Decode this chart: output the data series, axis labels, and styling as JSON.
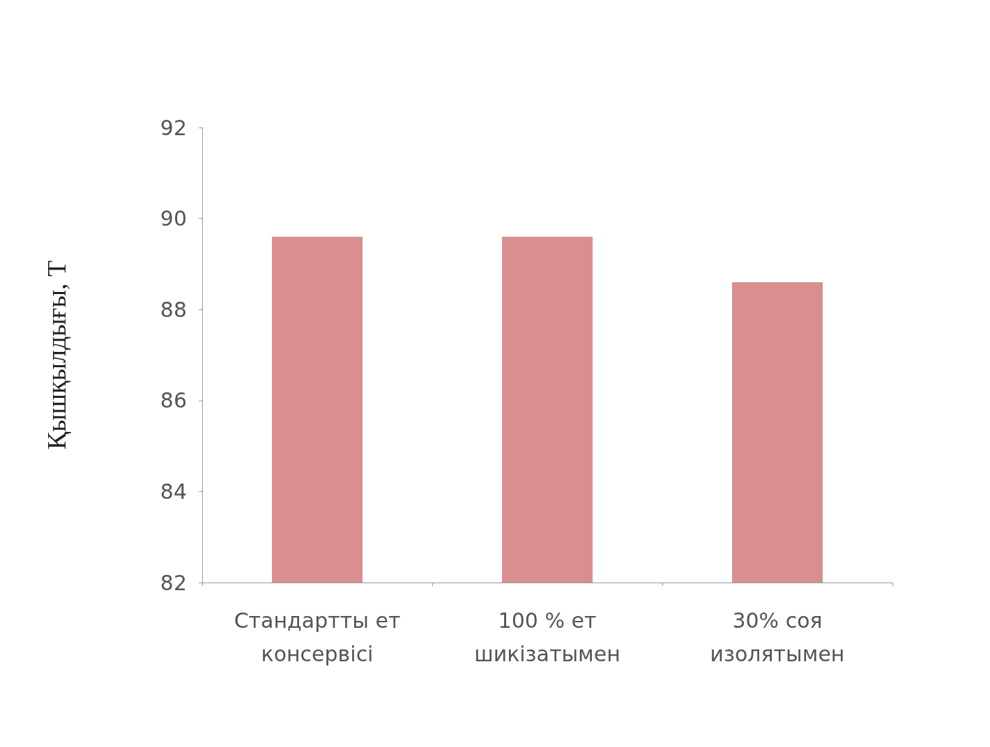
{
  "chart_data": {
    "type": "bar",
    "ylabel": "Қышқылдығы, Т",
    "categories": [
      "Стандартты ет\nконсервісі",
      "100 % ет\nшикізатымен",
      "30% соя\nизолятымен"
    ],
    "values": [
      89.6,
      89.6,
      88.6
    ],
    "color": "#d98f8f",
    "ylim": [
      82,
      92
    ],
    "yticks": [
      82,
      84,
      86,
      88,
      90,
      92
    ],
    "grid": false
  }
}
